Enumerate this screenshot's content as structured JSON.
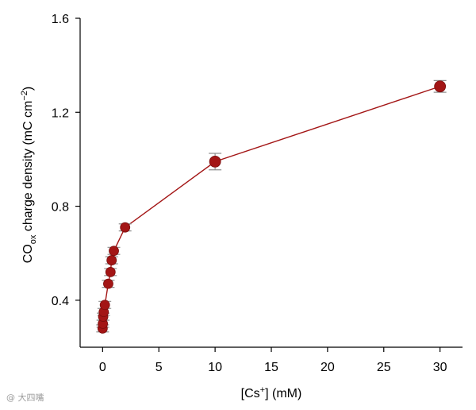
{
  "chart_data": {
    "type": "scatter",
    "title": "",
    "xlabel_parts": [
      "[Cs",
      "+",
      "] (mM)"
    ],
    "ylabel_parts": [
      "CO",
      "ox",
      " charge density (mC cm",
      "−2",
      ")"
    ],
    "xlim": [
      -2,
      32
    ],
    "ylim": [
      0.2,
      1.6
    ],
    "xticks": [
      0,
      5,
      10,
      15,
      20,
      25,
      30
    ],
    "yticks": [
      0.4,
      0.8,
      1.2,
      1.6
    ],
    "ytick_labels": [
      "0.4",
      "0.8",
      "1.2",
      "1.6"
    ],
    "grid": false,
    "series": [
      {
        "color": "#a31515",
        "line_color": "#a31515",
        "errorbar_color": "#909090",
        "points": [
          {
            "x": 0.0,
            "y": 0.28,
            "err": 0.015
          },
          {
            "x": 0.02,
            "y": 0.3,
            "err": 0.015
          },
          {
            "x": 0.05,
            "y": 0.33,
            "err": 0.015
          },
          {
            "x": 0.1,
            "y": 0.35,
            "err": 0.015
          },
          {
            "x": 0.2,
            "y": 0.38,
            "err": 0.015
          },
          {
            "x": 0.5,
            "y": 0.47,
            "err": 0.015
          },
          {
            "x": 0.7,
            "y": 0.52,
            "err": 0.015
          },
          {
            "x": 0.8,
            "y": 0.57,
            "err": 0.015
          },
          {
            "x": 1.0,
            "y": 0.61,
            "err": 0.015
          },
          {
            "x": 2.0,
            "y": 0.71,
            "err": 0.015
          },
          {
            "x": 10.0,
            "y": 0.99,
            "err": 0.035
          },
          {
            "x": 30.0,
            "y": 1.31,
            "err": 0.025
          }
        ]
      }
    ]
  },
  "watermark": "@ 大四嘴"
}
